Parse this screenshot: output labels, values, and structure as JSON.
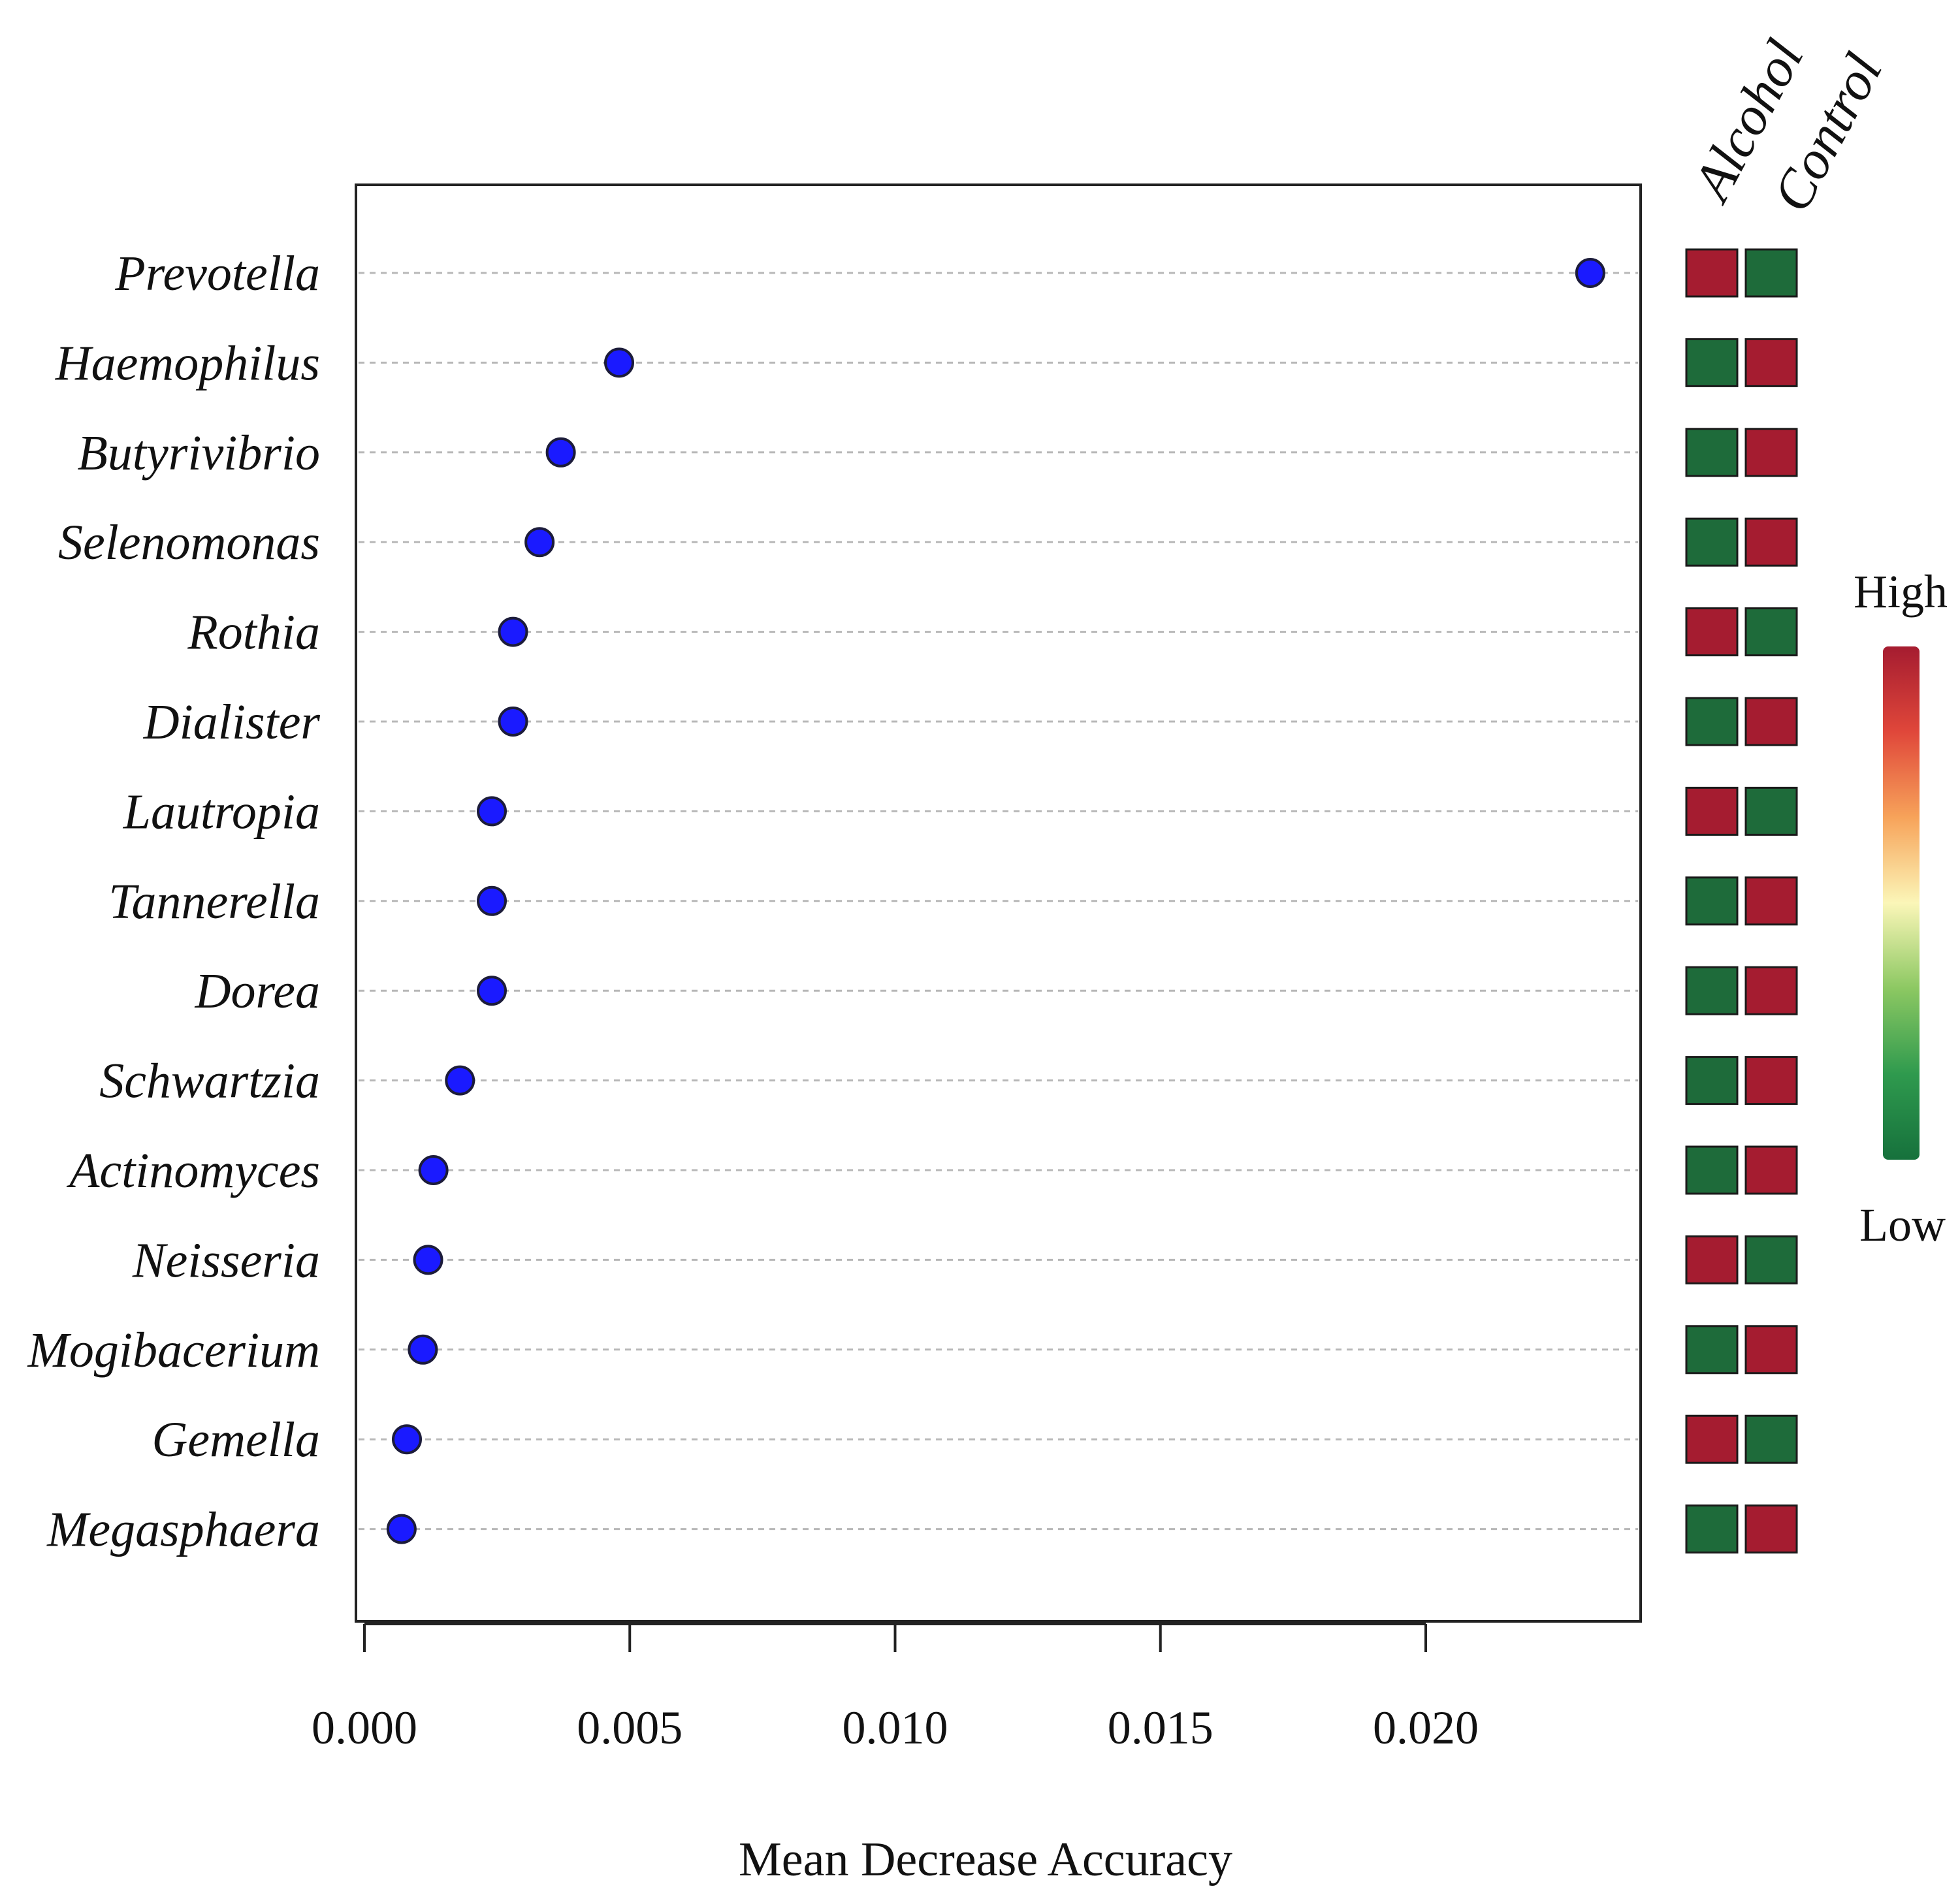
{
  "chart_data": {
    "type": "scatter",
    "subtype": "dot-plot",
    "xlabel": "Mean Decrease Accuracy",
    "ylabel": "",
    "xlim": [
      -0.0002,
      0.024
    ],
    "xticks": [
      0.0,
      0.005,
      0.01,
      0.015,
      0.02
    ],
    "xtick_labels": [
      "0.000",
      "0.005",
      "0.010",
      "0.015",
      "0.020"
    ],
    "grid": "horizontal-dashed",
    "point_color": "#1a1aff",
    "categories": [
      "Prevotella",
      "Haemophilus",
      "Butyrivibrio",
      "Selenomonas",
      "Rothia",
      "Dialister",
      "Lautropia",
      "Tannerella",
      "Dorea",
      "Schwartzia",
      "Actinomyces",
      "Neisseria",
      "Mogibacerium",
      "Gemella",
      "Megasphaera"
    ],
    "values": [
      0.0231,
      0.0048,
      0.0037,
      0.0033,
      0.0028,
      0.0028,
      0.0024,
      0.0024,
      0.0024,
      0.0018,
      0.0013,
      0.0012,
      0.0011,
      0.0008,
      0.0007
    ],
    "heatmap": {
      "columns": [
        "Alcohol",
        "Control"
      ],
      "high_color": "#a51c30",
      "low_color": "#1e6b3a",
      "levels": [
        [
          "High",
          "Low"
        ],
        [
          "Low",
          "High"
        ],
        [
          "Low",
          "High"
        ],
        [
          "Low",
          "High"
        ],
        [
          "High",
          "Low"
        ],
        [
          "Low",
          "High"
        ],
        [
          "High",
          "Low"
        ],
        [
          "Low",
          "High"
        ],
        [
          "Low",
          "High"
        ],
        [
          "Low",
          "High"
        ],
        [
          "Low",
          "High"
        ],
        [
          "High",
          "Low"
        ],
        [
          "Low",
          "High"
        ],
        [
          "High",
          "Low"
        ],
        [
          "Low",
          "High"
        ]
      ],
      "legend": {
        "high_label": "High",
        "low_label": "Low",
        "gradient": [
          "#a51c30",
          "#e0473a",
          "#f7a35a",
          "#fbf6b8",
          "#8cc862",
          "#2f9a4e",
          "#16713c"
        ]
      }
    }
  }
}
